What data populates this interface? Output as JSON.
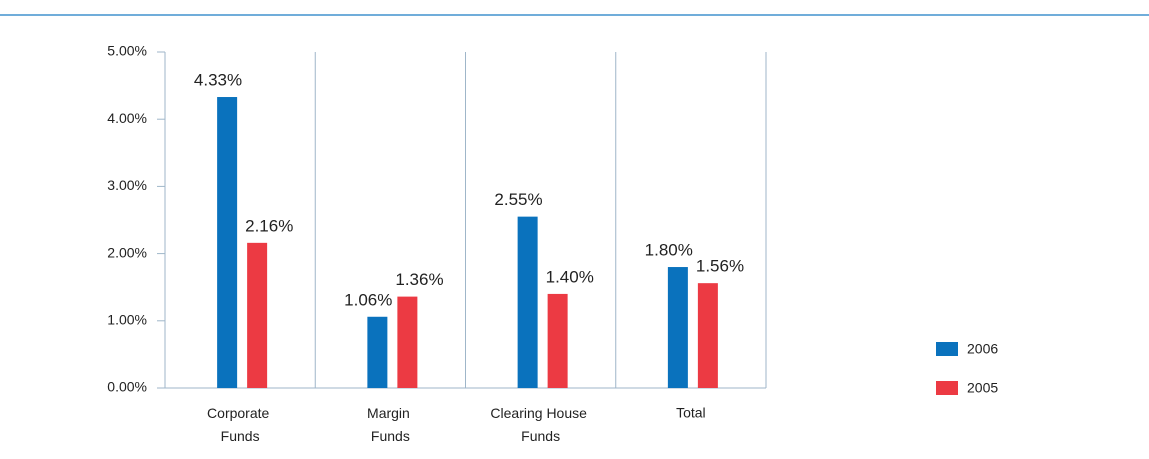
{
  "chart_data": {
    "type": "bar",
    "categories": [
      "Corporate Funds",
      "Margin Funds",
      "Clearing House Funds",
      "Total"
    ],
    "series": [
      {
        "name": "2006",
        "color": "#0a72bd",
        "values": [
          4.33,
          1.06,
          2.55,
          1.8
        ],
        "value_labels": [
          "4.33%",
          "1.06%",
          "2.55%",
          "1.80%"
        ]
      },
      {
        "name": "2005",
        "color": "#ec3a43",
        "values": [
          2.16,
          1.36,
          1.4,
          1.56
        ],
        "value_labels": [
          "2.16%",
          "1.36%",
          "1.40%",
          "1.56%"
        ]
      }
    ],
    "ylim": [
      0,
      5
    ],
    "yticks": [
      {
        "value": 0,
        "label": "0.00%"
      },
      {
        "value": 1,
        "label": "1.00%"
      },
      {
        "value": 2,
        "label": "2.00%"
      },
      {
        "value": 3,
        "label": "3.00%"
      },
      {
        "value": 4,
        "label": "4.00%"
      },
      {
        "value": 5,
        "label": "5.00%"
      }
    ],
    "legend": "right"
  }
}
